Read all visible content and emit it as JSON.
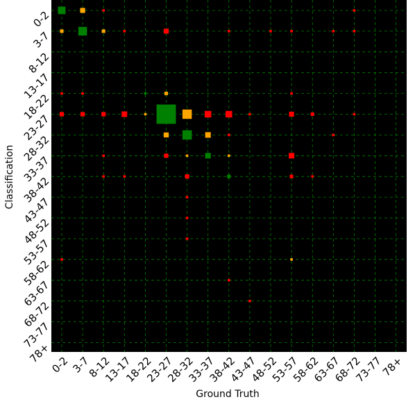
{
  "chart_data": {
    "type": "scatter",
    "subtype": "confusion-matrix-bubble",
    "title": "",
    "xlabel": "Ground Truth",
    "ylabel": "Classification",
    "categories": [
      "0-2",
      "3-7",
      "8-12",
      "13-17",
      "18-22",
      "23-27",
      "28-32",
      "33-37",
      "38-42",
      "43-47",
      "48-52",
      "53-57",
      "58-62",
      "63-67",
      "68-72",
      "73-77",
      "78+"
    ],
    "grid": true,
    "background": "#000000",
    "colors": {
      "correct": "#008000",
      "adjacent": "#ffa500",
      "wrong": "#ff0000",
      "grid": "#008000"
    },
    "size_legend": "marker area proportional to count",
    "cells": [
      {
        "gt": "0-2",
        "cls": "0-2",
        "count": 9,
        "kind": "correct"
      },
      {
        "gt": "3-7",
        "cls": "0-2",
        "count": 4,
        "kind": "adjacent"
      },
      {
        "gt": "8-12",
        "cls": "0-2",
        "count": 1,
        "kind": "wrong"
      },
      {
        "gt": "68-72",
        "cls": "0-2",
        "count": 1,
        "kind": "wrong"
      },
      {
        "gt": "0-2",
        "cls": "3-7",
        "count": 2,
        "kind": "adjacent"
      },
      {
        "gt": "3-7",
        "cls": "3-7",
        "count": 12,
        "kind": "correct"
      },
      {
        "gt": "8-12",
        "cls": "3-7",
        "count": 2,
        "kind": "adjacent"
      },
      {
        "gt": "13-17",
        "cls": "3-7",
        "count": 1,
        "kind": "wrong"
      },
      {
        "gt": "23-27",
        "cls": "3-7",
        "count": 4,
        "kind": "wrong"
      },
      {
        "gt": "38-42",
        "cls": "3-7",
        "count": 1,
        "kind": "wrong"
      },
      {
        "gt": "48-52",
        "cls": "3-7",
        "count": 1,
        "kind": "wrong"
      },
      {
        "gt": "53-57",
        "cls": "3-7",
        "count": 1,
        "kind": "wrong"
      },
      {
        "gt": "63-67",
        "cls": "3-7",
        "count": 1,
        "kind": "wrong"
      },
      {
        "gt": "68-72",
        "cls": "3-7",
        "count": 1,
        "kind": "wrong"
      },
      {
        "gt": "0-2",
        "cls": "18-22",
        "count": 1,
        "kind": "wrong"
      },
      {
        "gt": "3-7",
        "cls": "18-22",
        "count": 1,
        "kind": "wrong"
      },
      {
        "gt": "18-22",
        "cls": "18-22",
        "count": 1,
        "kind": "correct"
      },
      {
        "gt": "23-27",
        "cls": "18-22",
        "count": 2,
        "kind": "adjacent"
      },
      {
        "gt": "53-57",
        "cls": "18-22",
        "count": 1,
        "kind": "wrong"
      },
      {
        "gt": "0-2",
        "cls": "23-27",
        "count": 3,
        "kind": "wrong"
      },
      {
        "gt": "3-7",
        "cls": "23-27",
        "count": 3,
        "kind": "wrong"
      },
      {
        "gt": "8-12",
        "cls": "23-27",
        "count": 3,
        "kind": "wrong"
      },
      {
        "gt": "13-17",
        "cls": "23-27",
        "count": 5,
        "kind": "wrong"
      },
      {
        "gt": "18-22",
        "cls": "23-27",
        "count": 1,
        "kind": "adjacent"
      },
      {
        "gt": "23-27",
        "cls": "23-27",
        "count": 60,
        "kind": "correct"
      },
      {
        "gt": "28-32",
        "cls": "23-27",
        "count": 14,
        "kind": "adjacent"
      },
      {
        "gt": "33-37",
        "cls": "23-27",
        "count": 7,
        "kind": "wrong"
      },
      {
        "gt": "38-42",
        "cls": "23-27",
        "count": 7,
        "kind": "wrong"
      },
      {
        "gt": "43-47",
        "cls": "23-27",
        "count": 1,
        "kind": "wrong"
      },
      {
        "gt": "53-57",
        "cls": "23-27",
        "count": 4,
        "kind": "wrong"
      },
      {
        "gt": "58-62",
        "cls": "23-27",
        "count": 2,
        "kind": "wrong"
      },
      {
        "gt": "68-72",
        "cls": "23-27",
        "count": 1,
        "kind": "wrong"
      },
      {
        "gt": "23-27",
        "cls": "28-32",
        "count": 4,
        "kind": "adjacent"
      },
      {
        "gt": "28-32",
        "cls": "28-32",
        "count": 14,
        "kind": "correct"
      },
      {
        "gt": "33-37",
        "cls": "28-32",
        "count": 5,
        "kind": "adjacent"
      },
      {
        "gt": "38-42",
        "cls": "28-32",
        "count": 1,
        "kind": "wrong"
      },
      {
        "gt": "63-67",
        "cls": "28-32",
        "count": 1,
        "kind": "wrong"
      },
      {
        "gt": "8-12",
        "cls": "33-37",
        "count": 1,
        "kind": "wrong"
      },
      {
        "gt": "23-27",
        "cls": "33-37",
        "count": 3,
        "kind": "wrong"
      },
      {
        "gt": "28-32",
        "cls": "33-37",
        "count": 1,
        "kind": "adjacent"
      },
      {
        "gt": "33-37",
        "cls": "33-37",
        "count": 5,
        "kind": "correct"
      },
      {
        "gt": "38-42",
        "cls": "33-37",
        "count": 1,
        "kind": "adjacent"
      },
      {
        "gt": "53-57",
        "cls": "33-37",
        "count": 5,
        "kind": "wrong"
      },
      {
        "gt": "8-12",
        "cls": "38-42",
        "count": 1,
        "kind": "wrong"
      },
      {
        "gt": "13-17",
        "cls": "38-42",
        "count": 1,
        "kind": "wrong"
      },
      {
        "gt": "28-32",
        "cls": "38-42",
        "count": 3,
        "kind": "wrong"
      },
      {
        "gt": "38-42",
        "cls": "38-42",
        "count": 2,
        "kind": "correct"
      },
      {
        "gt": "53-57",
        "cls": "38-42",
        "count": 2,
        "kind": "wrong"
      },
      {
        "gt": "58-62",
        "cls": "38-42",
        "count": 1,
        "kind": "wrong"
      },
      {
        "gt": "28-32",
        "cls": "43-47",
        "count": 1,
        "kind": "wrong"
      },
      {
        "gt": "28-32",
        "cls": "48-52",
        "count": 1,
        "kind": "wrong"
      },
      {
        "gt": "28-32",
        "cls": "53-57",
        "count": 1,
        "kind": "wrong"
      },
      {
        "gt": "0-2",
        "cls": "58-62",
        "count": 1,
        "kind": "wrong"
      },
      {
        "gt": "53-57",
        "cls": "58-62",
        "count": 1,
        "kind": "adjacent"
      },
      {
        "gt": "38-42",
        "cls": "63-67",
        "count": 1,
        "kind": "wrong"
      },
      {
        "gt": "43-47",
        "cls": "68-72",
        "count": 1,
        "kind": "wrong"
      }
    ]
  }
}
